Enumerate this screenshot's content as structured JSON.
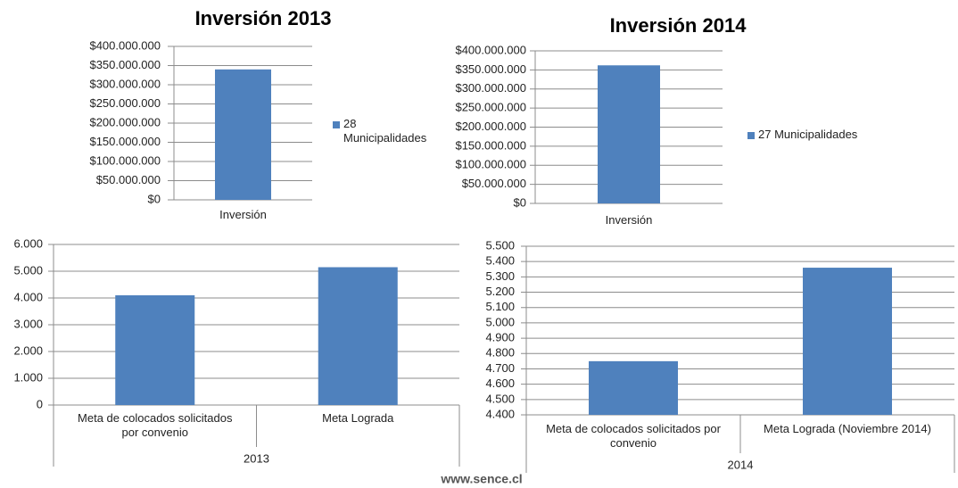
{
  "chart_data": [
    {
      "type": "bar",
      "title": "Inversión 2013",
      "categories": [
        "Inversión"
      ],
      "series": [
        {
          "name": "28 Municipalidades",
          "color": "#4f81bd",
          "values": [
            340000000
          ]
        }
      ],
      "ylim": [
        0,
        400000000
      ],
      "yticks": [
        {
          "value": 0,
          "label": "$0"
        },
        {
          "value": 50000000,
          "label": "$50.000.000"
        },
        {
          "value": 100000000,
          "label": "$100.000.000"
        },
        {
          "value": 150000000,
          "label": "$150.000.000"
        },
        {
          "value": 200000000,
          "label": "$200.000.000"
        },
        {
          "value": 250000000,
          "label": "$250.000.000"
        },
        {
          "value": 300000000,
          "label": "$300.000.000"
        },
        {
          "value": 350000000,
          "label": "$350.000.000"
        },
        {
          "value": 400000000,
          "label": "$400.000.000"
        }
      ],
      "grid": true
    },
    {
      "type": "bar",
      "title": "Inversión 2014",
      "categories": [
        "Inversión"
      ],
      "series": [
        {
          "name": "27 Municipalidades",
          "color": "#4f81bd",
          "values": [
            362000000
          ]
        }
      ],
      "ylim": [
        0,
        400000000
      ],
      "yticks": [
        {
          "value": 0,
          "label": "$0"
        },
        {
          "value": 50000000,
          "label": "$50.000.000"
        },
        {
          "value": 100000000,
          "label": "$100.000.000"
        },
        {
          "value": 150000000,
          "label": "$150.000.000"
        },
        {
          "value": 200000000,
          "label": "$200.000.000"
        },
        {
          "value": 250000000,
          "label": "$250.000.000"
        },
        {
          "value": 300000000,
          "label": "$300.000.000"
        },
        {
          "value": 350000000,
          "label": "$350.000.000"
        },
        {
          "value": 400000000,
          "label": "$400.000.000"
        }
      ],
      "grid": true
    },
    {
      "type": "bar",
      "categories": [
        "Meta de colocados solicitados por convenio",
        "Meta Lograda"
      ],
      "xlabel": "2013",
      "series": [
        {
          "color": "#4f81bd",
          "values": [
            4100,
            5150
          ]
        }
      ],
      "ylim": [
        0,
        6000
      ],
      "yticks": [
        0,
        {
          "value": 1000,
          "label": "1.000"
        },
        {
          "value": 2000,
          "label": "2.000"
        },
        {
          "value": 3000,
          "label": "3.000"
        },
        {
          "value": 4000,
          "label": "4.000"
        },
        {
          "value": 5000,
          "label": "5.000"
        },
        {
          "value": 6000,
          "label": "6.000"
        }
      ],
      "grid": true
    },
    {
      "type": "bar",
      "categories": [
        "Meta de colocados solicitados por convenio",
        "Meta Lograda (Noviembre 2014)"
      ],
      "xlabel": "2014",
      "series": [
        {
          "color": "#4f81bd",
          "values": [
            4750,
            5360
          ]
        }
      ],
      "ylim": [
        4400,
        5500
      ],
      "yticks": [
        {
          "value": 4400,
          "label": "4.400"
        },
        {
          "value": 4500,
          "label": "4.500"
        },
        {
          "value": 4600,
          "label": "4.600"
        },
        {
          "value": 4700,
          "label": "4.700"
        },
        {
          "value": 4800,
          "label": "4.800"
        },
        {
          "value": 4900,
          "label": "4.900"
        },
        {
          "value": 5000,
          "label": "5.000"
        },
        {
          "value": 5100,
          "label": "5.100"
        },
        {
          "value": 5200,
          "label": "5.200"
        },
        {
          "value": 5300,
          "label": "5.300"
        },
        {
          "value": 5400,
          "label": "5.400"
        },
        {
          "value": 5500,
          "label": "5.500"
        }
      ],
      "grid": true
    }
  ],
  "footer": "www.sence.cl"
}
